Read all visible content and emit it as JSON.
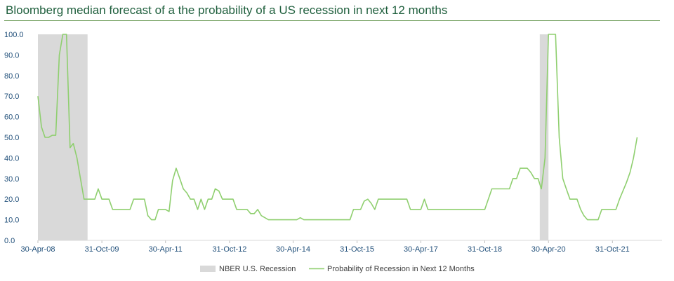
{
  "header": {
    "title": "Bloomberg median forecast of a the probability of a US recession in next 12 months"
  },
  "colors": {
    "recession_fill": "#d9d9d9",
    "line": "#8fcf6f",
    "axis_text": "#1f4e79",
    "title": "#1f5f3d"
  },
  "chart_data": {
    "type": "line",
    "title": "Bloomberg median forecast of a the probability of a US recession in next 12 months",
    "xlabel": "",
    "ylabel": "",
    "ylim": [
      0,
      100
    ],
    "xlim": [
      "2008-04-30",
      "2022-12-31"
    ],
    "yticks": [
      "0.0",
      "10.0",
      "20.0",
      "30.0",
      "40.0",
      "50.0",
      "60.0",
      "70.0",
      "80.0",
      "90.0",
      "100.0"
    ],
    "xticks": [
      {
        "date": "2008-04-30",
        "label": "30-Apr-08"
      },
      {
        "date": "2009-10-31",
        "label": "31-Oct-09"
      },
      {
        "date": "2011-04-30",
        "label": "30-Apr-11"
      },
      {
        "date": "2012-10-31",
        "label": "31-Oct-12"
      },
      {
        "date": "2014-04-30",
        "label": "30-Apr-14"
      },
      {
        "date": "2015-10-31",
        "label": "31-Oct-15"
      },
      {
        "date": "2017-04-30",
        "label": "30-Apr-17"
      },
      {
        "date": "2018-10-31",
        "label": "31-Oct-18"
      },
      {
        "date": "2020-04-30",
        "label": "30-Apr-20"
      },
      {
        "date": "2021-10-31",
        "label": "31-Oct-21"
      }
    ],
    "recessions": [
      {
        "name": "NBER U.S. Recession",
        "start": "2008-04-30",
        "end": "2009-06-30"
      },
      {
        "name": "NBER U.S. Recession",
        "start": "2020-02-15",
        "end": "2020-04-30"
      }
    ],
    "legend": [
      {
        "key": "recession",
        "label": "NBER U.S. Recession"
      },
      {
        "key": "probability",
        "label": "Probability of Recession in Next 12 Months"
      }
    ],
    "series": [
      {
        "name": "Probability of Recession in Next 12 Months",
        "points": [
          [
            "2008-04-30",
            70
          ],
          [
            "2008-05-31",
            55
          ],
          [
            "2008-06-30",
            50
          ],
          [
            "2008-07-31",
            50
          ],
          [
            "2008-08-31",
            51
          ],
          [
            "2008-09-30",
            51
          ],
          [
            "2008-10-31",
            90
          ],
          [
            "2008-11-30",
            100
          ],
          [
            "2008-12-31",
            100
          ],
          [
            "2009-01-31",
            45
          ],
          [
            "2009-02-28",
            47
          ],
          [
            "2009-03-31",
            40
          ],
          [
            "2009-04-30",
            30
          ],
          [
            "2009-05-31",
            20
          ],
          [
            "2009-06-30",
            20
          ],
          [
            "2009-07-31",
            20
          ],
          [
            "2009-08-31",
            20
          ],
          [
            "2009-09-30",
            25
          ],
          [
            "2009-10-31",
            20
          ],
          [
            "2009-11-30",
            20
          ],
          [
            "2009-12-31",
            20
          ],
          [
            "2010-01-31",
            15
          ],
          [
            "2010-03-31",
            15
          ],
          [
            "2010-05-31",
            15
          ],
          [
            "2010-06-30",
            15
          ],
          [
            "2010-07-31",
            20
          ],
          [
            "2010-09-30",
            20
          ],
          [
            "2010-10-31",
            20
          ],
          [
            "2010-11-30",
            12
          ],
          [
            "2010-12-31",
            10
          ],
          [
            "2011-01-31",
            10
          ],
          [
            "2011-02-28",
            15
          ],
          [
            "2011-04-30",
            15
          ],
          [
            "2011-05-31",
            14
          ],
          [
            "2011-06-30",
            29
          ],
          [
            "2011-07-31",
            35
          ],
          [
            "2011-08-31",
            30
          ],
          [
            "2011-09-30",
            25
          ],
          [
            "2011-10-31",
            23
          ],
          [
            "2011-11-30",
            20
          ],
          [
            "2011-12-31",
            20
          ],
          [
            "2012-01-31",
            15
          ],
          [
            "2012-02-29",
            20
          ],
          [
            "2012-03-31",
            15
          ],
          [
            "2012-04-30",
            20
          ],
          [
            "2012-05-31",
            20
          ],
          [
            "2012-06-30",
            25
          ],
          [
            "2012-07-31",
            24
          ],
          [
            "2012-08-31",
            20
          ],
          [
            "2012-10-31",
            20
          ],
          [
            "2012-11-30",
            20
          ],
          [
            "2012-12-31",
            15
          ],
          [
            "2013-03-31",
            15
          ],
          [
            "2013-04-30",
            13
          ],
          [
            "2013-05-31",
            13
          ],
          [
            "2013-06-30",
            15
          ],
          [
            "2013-07-31",
            12
          ],
          [
            "2013-08-31",
            11
          ],
          [
            "2013-09-30",
            10
          ],
          [
            "2014-05-31",
            10
          ],
          [
            "2014-06-30",
            11
          ],
          [
            "2014-07-31",
            10
          ],
          [
            "2015-08-31",
            10
          ],
          [
            "2015-09-30",
            15
          ],
          [
            "2015-11-30",
            15
          ],
          [
            "2015-12-31",
            19
          ],
          [
            "2016-01-31",
            20
          ],
          [
            "2016-02-29",
            18
          ],
          [
            "2016-03-31",
            15
          ],
          [
            "2016-04-30",
            20
          ],
          [
            "2016-12-31",
            20
          ],
          [
            "2017-01-31",
            15
          ],
          [
            "2017-04-30",
            15
          ],
          [
            "2017-05-31",
            20
          ],
          [
            "2017-06-30",
            15
          ],
          [
            "2018-10-31",
            15
          ],
          [
            "2018-12-31",
            25
          ],
          [
            "2019-05-31",
            25
          ],
          [
            "2019-06-30",
            30
          ],
          [
            "2019-07-31",
            30
          ],
          [
            "2019-08-31",
            35
          ],
          [
            "2019-10-31",
            35
          ],
          [
            "2019-11-30",
            33
          ],
          [
            "2019-12-31",
            30
          ],
          [
            "2020-01-31",
            30
          ],
          [
            "2020-02-29",
            25
          ],
          [
            "2020-03-31",
            40
          ],
          [
            "2020-04-30",
            100
          ],
          [
            "2020-06-30",
            100
          ],
          [
            "2020-07-31",
            50
          ],
          [
            "2020-08-31",
            30
          ],
          [
            "2020-09-30",
            25
          ],
          [
            "2020-10-31",
            20
          ],
          [
            "2020-12-31",
            20
          ],
          [
            "2021-01-31",
            15
          ],
          [
            "2021-02-28",
            12
          ],
          [
            "2021-03-31",
            10
          ],
          [
            "2021-06-30",
            10
          ],
          [
            "2021-07-31",
            15
          ],
          [
            "2021-11-30",
            15
          ],
          [
            "2021-12-31",
            20
          ],
          [
            "2022-02-28",
            28
          ],
          [
            "2022-03-31",
            33
          ],
          [
            "2022-04-30",
            40
          ],
          [
            "2022-05-31",
            50
          ]
        ]
      }
    ]
  }
}
